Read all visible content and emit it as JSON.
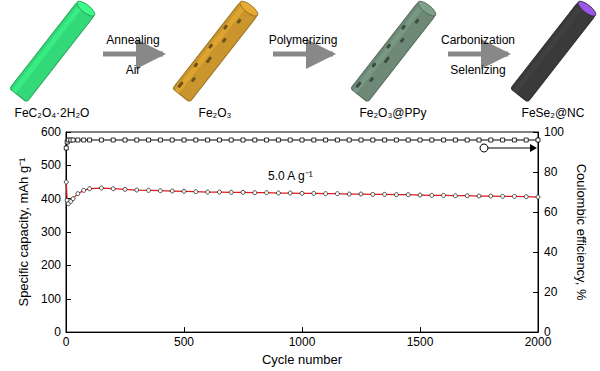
{
  "diagram": {
    "nodes": [
      {
        "label": "FeC₂O₄·2H₂O",
        "color": "#33d978"
      },
      {
        "label": "Fe₂O₃",
        "color": "#c9952c"
      },
      {
        "label": "Fe₂O₃@PPy",
        "color": "#6e8a77"
      },
      {
        "label": "FeSe₂@NC",
        "color": "#3a3a3a"
      }
    ],
    "steps": [
      {
        "above": "Annealing",
        "below": "Air"
      },
      {
        "above": "Polymerizing"
      },
      {
        "above": "Carbonization",
        "below": "Selenizing"
      }
    ]
  },
  "chart_data": {
    "type": "line",
    "x_label": "Cycle number",
    "y_label": "Specific capacity, mAh g⁻¹",
    "y2_label": "Coulombic efficiency, %",
    "annotations": [
      "5.0 A g⁻¹"
    ],
    "x": [
      1,
      5,
      10,
      20,
      30,
      50,
      75,
      100,
      150,
      200,
      250,
      300,
      350,
      400,
      450,
      500,
      550,
      600,
      650,
      700,
      750,
      800,
      850,
      900,
      950,
      1000,
      1050,
      1100,
      1150,
      1200,
      1250,
      1300,
      1350,
      1400,
      1450,
      1500,
      1550,
      1600,
      1650,
      1700,
      1750,
      1800,
      1850,
      1900,
      1950,
      2000
    ],
    "series": [
      {
        "color": "#e31a1c",
        "marker": "circle",
        "axis": "y",
        "values": [
          450,
          395,
          385,
          392,
          400,
          415,
          425,
          430,
          432,
          430,
          428,
          426,
          425,
          424,
          423,
          422,
          421,
          420,
          420,
          419,
          419,
          418,
          418,
          417,
          417,
          416,
          416,
          415,
          415,
          414,
          414,
          413,
          413,
          412,
          412,
          411,
          410,
          410,
          409,
          409,
          408,
          408,
          407,
          407,
          406,
          405
        ]
      },
      {
        "color": "#000000",
        "marker": "square",
        "axis": "y2",
        "values": [
          92,
          95,
          96,
          96,
          96,
          96,
          96,
          96,
          96,
          96,
          96,
          96,
          96,
          96,
          96,
          96,
          96,
          96,
          96,
          96,
          96,
          96,
          96,
          96,
          96,
          96,
          96,
          96,
          96,
          96,
          96,
          96,
          96,
          96,
          96,
          96,
          96,
          96,
          96,
          96,
          96,
          96,
          96,
          96,
          96,
          96
        ]
      }
    ],
    "xlim": [
      0,
      2000
    ],
    "xticks": [
      0,
      500,
      1000,
      1500,
      2000
    ],
    "ylim": [
      0,
      600
    ],
    "yticks": [
      0,
      100,
      200,
      300,
      400,
      500,
      600
    ],
    "y2lim": [
      0,
      100
    ],
    "y2ticks": [
      0,
      20,
      40,
      60,
      80,
      100
    ],
    "grid": false
  }
}
